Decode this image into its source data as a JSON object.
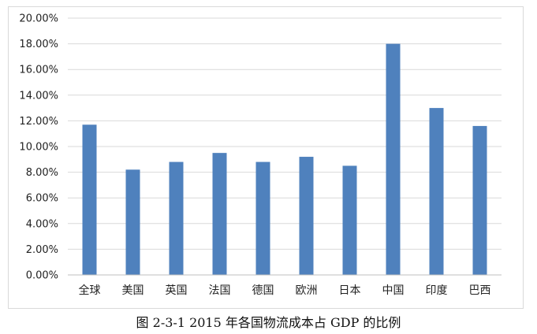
{
  "figure": {
    "caption": "图 2-3-1 2015 年各国物流成本占 GDP 的比例"
  },
  "colors": {
    "bar": "#4f81bd",
    "grid": "#d9d9d9",
    "axis": "#bfbfbf"
  },
  "chart_data": {
    "type": "bar",
    "title": "",
    "xlabel": "",
    "ylabel": "",
    "categories": [
      "全球",
      "美国",
      "英国",
      "法国",
      "德国",
      "欧洲",
      "日本",
      "中国",
      "印度",
      "巴西"
    ],
    "values": [
      11.7,
      8.2,
      8.8,
      9.5,
      8.8,
      9.2,
      8.5,
      18.0,
      13.0,
      11.6
    ],
    "value_format": "percent",
    "ylim": [
      0,
      20
    ],
    "y_ticks": [
      0,
      2,
      4,
      6,
      8,
      10,
      12,
      14,
      16,
      18,
      20
    ],
    "y_tick_labels": [
      "0.00%",
      "2.00%",
      "4.00%",
      "6.00%",
      "8.00%",
      "10.00%",
      "12.00%",
      "14.00%",
      "16.00%",
      "18.00%",
      "20.00%"
    ],
    "grid": true,
    "legend": "none"
  }
}
